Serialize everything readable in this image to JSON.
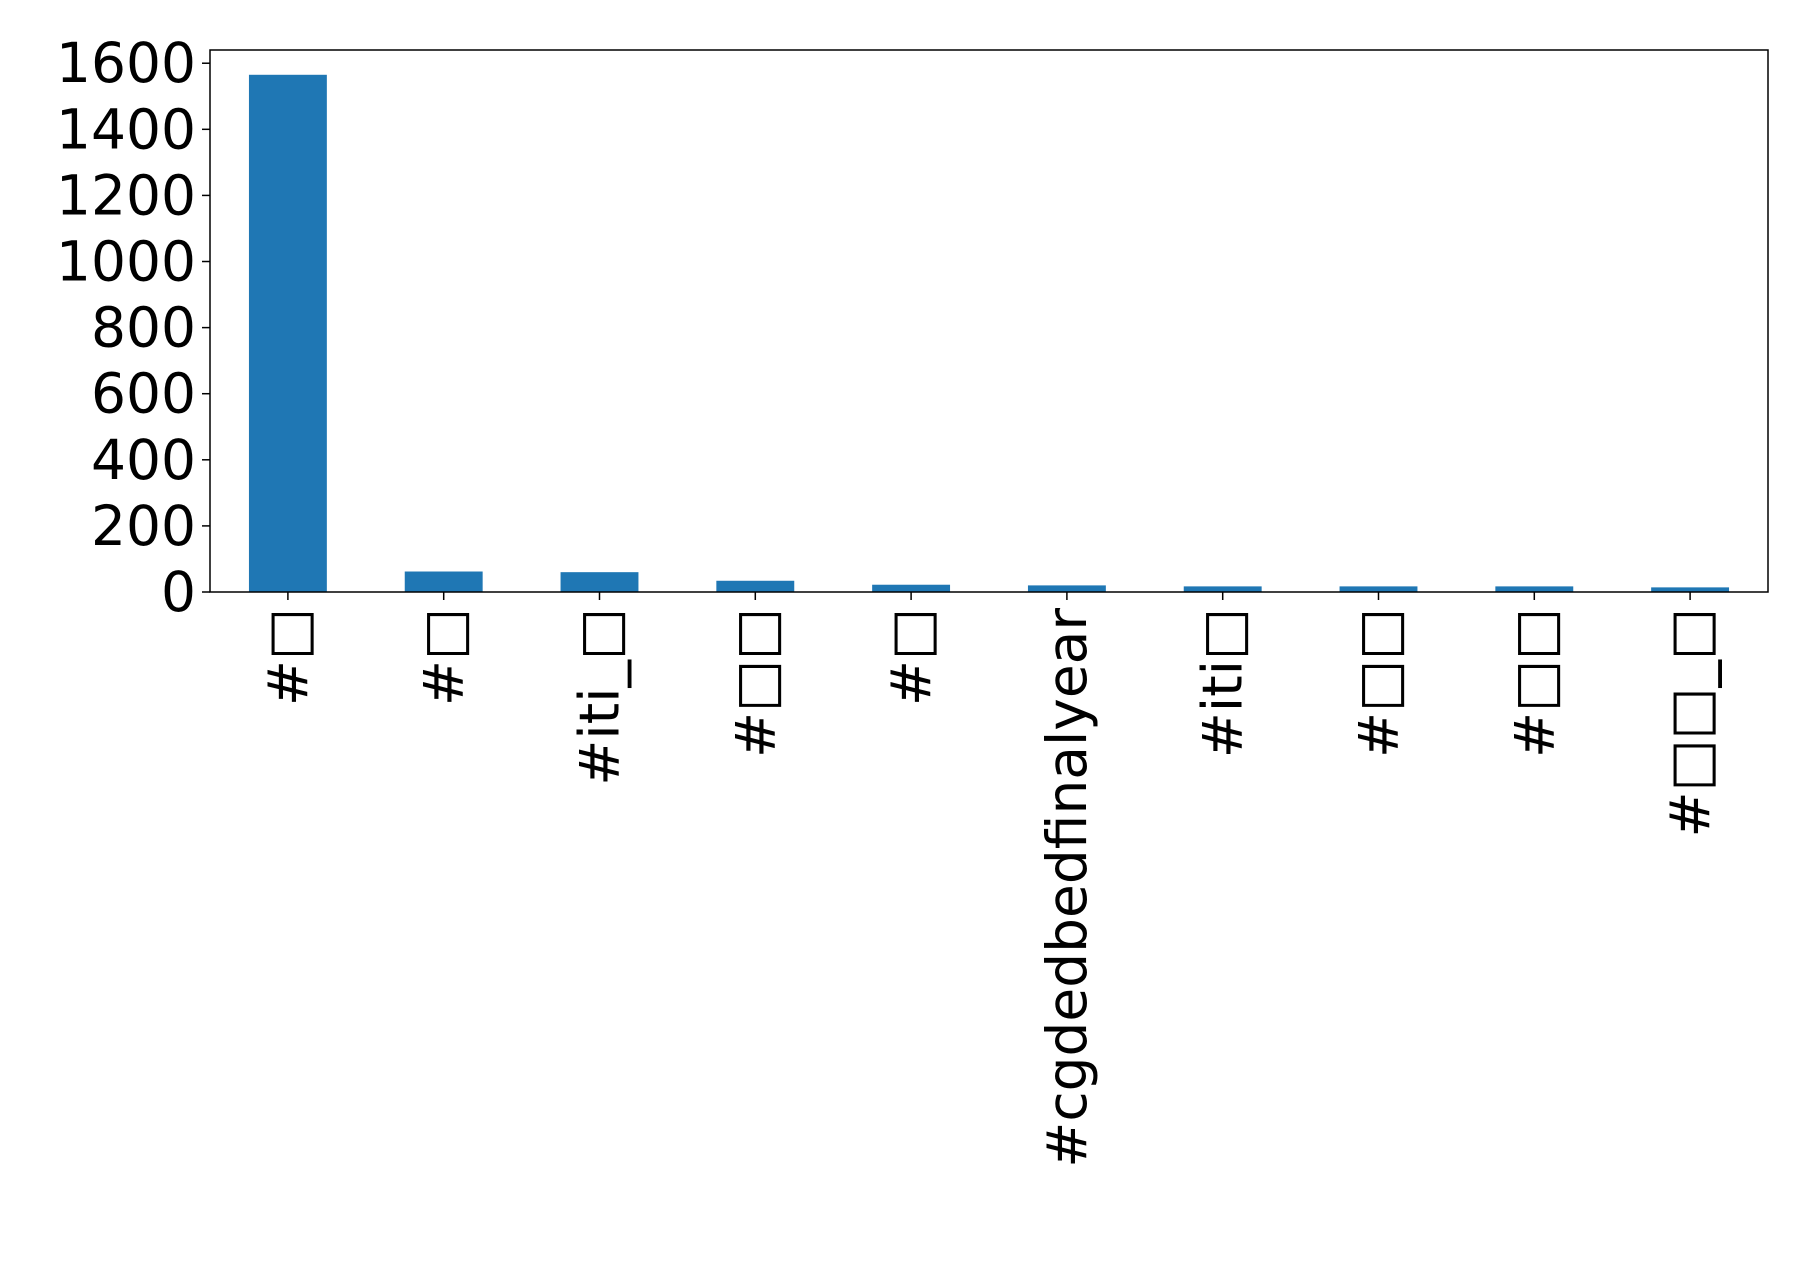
{
  "chart_data": {
    "type": "bar",
    "title": "",
    "xlabel": "",
    "ylabel": "",
    "categories": [
      "#□",
      "#□",
      "#iti_□",
      "#□□",
      "#□",
      "#cgdedbedfinalyear",
      "#iti□",
      "#□□",
      "#□□",
      "#□□_□"
    ],
    "values": [
      1565,
      62,
      60,
      34,
      22,
      20,
      17,
      17,
      17,
      14
    ],
    "ylim": [
      0,
      1640
    ],
    "yticks": [
      0,
      200,
      400,
      600,
      800,
      1000,
      1200,
      1400,
      1600
    ],
    "bar_color": "#1f77b4",
    "grid": false,
    "legend": "none"
  }
}
